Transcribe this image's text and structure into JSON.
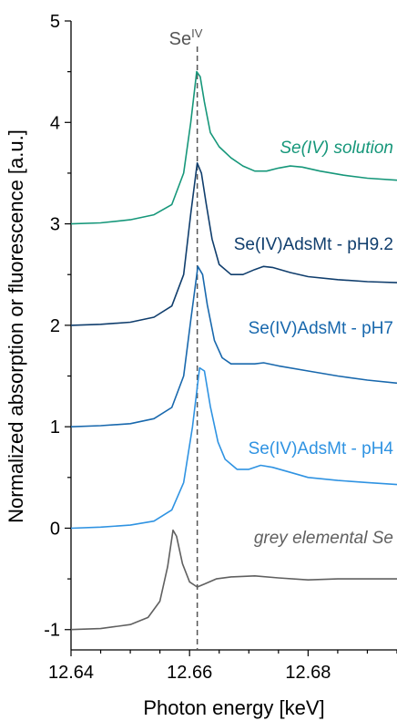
{
  "chart_data": {
    "type": "line",
    "title": "",
    "xlabel": "Photon energy [keV]",
    "ylabel": "Normalized absorption or fluorescence [a.u.]",
    "xlim": [
      12.64,
      12.695
    ],
    "ylim": [
      -1.2,
      5.0
    ],
    "x_ticks": [
      12.64,
      12.66,
      12.68
    ],
    "x_tick_labels": [
      "12.64",
      "12.66",
      "12.68"
    ],
    "y_ticks": [
      -1,
      0,
      1,
      2,
      3,
      4,
      5
    ],
    "y_tick_labels": [
      "-1",
      "0",
      "1",
      "2",
      "3",
      "4",
      "5"
    ],
    "grid": false,
    "legend": "inline labels",
    "reference_line": {
      "x": 12.6613,
      "label_base": "Se",
      "label_sup": "IV",
      "color": "#555555",
      "style": "dashed"
    },
    "series": [
      {
        "name": "Se(IV) solution",
        "label_style": "italic",
        "color": "#16977a",
        "points": [
          [
            12.64,
            3.0
          ],
          [
            12.645,
            3.01
          ],
          [
            12.65,
            3.04
          ],
          [
            12.654,
            3.09
          ],
          [
            12.657,
            3.19
          ],
          [
            12.659,
            3.5
          ],
          [
            12.6602,
            4.0
          ],
          [
            12.6612,
            4.5
          ],
          [
            12.6618,
            4.45
          ],
          [
            12.6625,
            4.2
          ],
          [
            12.6635,
            3.9
          ],
          [
            12.665,
            3.76
          ],
          [
            12.667,
            3.65
          ],
          [
            12.669,
            3.57
          ],
          [
            12.671,
            3.52
          ],
          [
            12.673,
            3.52
          ],
          [
            12.675,
            3.55
          ],
          [
            12.677,
            3.57
          ],
          [
            12.679,
            3.56
          ],
          [
            12.682,
            3.52
          ],
          [
            12.686,
            3.48
          ],
          [
            12.69,
            3.45
          ],
          [
            12.695,
            3.43
          ]
        ]
      },
      {
        "name": "Se(IV)AdsMt - pH9.2",
        "label_style": "normal",
        "color": "#103e6d",
        "points": [
          [
            12.64,
            2.0
          ],
          [
            12.645,
            2.01
          ],
          [
            12.65,
            2.03
          ],
          [
            12.654,
            2.08
          ],
          [
            12.657,
            2.19
          ],
          [
            12.659,
            2.5
          ],
          [
            12.6602,
            3.1
          ],
          [
            12.6613,
            3.6
          ],
          [
            12.662,
            3.5
          ],
          [
            12.6628,
            3.2
          ],
          [
            12.6638,
            2.85
          ],
          [
            12.665,
            2.6
          ],
          [
            12.667,
            2.5
          ],
          [
            12.669,
            2.5
          ],
          [
            12.671,
            2.55
          ],
          [
            12.6725,
            2.58
          ],
          [
            12.674,
            2.57
          ],
          [
            12.677,
            2.52
          ],
          [
            12.68,
            2.48
          ],
          [
            12.685,
            2.45
          ],
          [
            12.69,
            2.43
          ],
          [
            12.695,
            2.42
          ]
        ]
      },
      {
        "name": "Se(IV)AdsMt - pH7",
        "label_style": "normal",
        "color": "#1868ad",
        "points": [
          [
            12.64,
            1.0
          ],
          [
            12.645,
            1.01
          ],
          [
            12.65,
            1.03
          ],
          [
            12.654,
            1.08
          ],
          [
            12.657,
            1.19
          ],
          [
            12.659,
            1.5
          ],
          [
            12.6602,
            2.05
          ],
          [
            12.6614,
            2.58
          ],
          [
            12.6622,
            2.5
          ],
          [
            12.663,
            2.2
          ],
          [
            12.6642,
            1.85
          ],
          [
            12.6655,
            1.68
          ],
          [
            12.667,
            1.62
          ],
          [
            12.669,
            1.62
          ],
          [
            12.671,
            1.62
          ],
          [
            12.6725,
            1.63
          ],
          [
            12.675,
            1.6
          ],
          [
            12.68,
            1.55
          ],
          [
            12.685,
            1.5
          ],
          [
            12.69,
            1.46
          ],
          [
            12.695,
            1.43
          ]
        ]
      },
      {
        "name": "Se(IV)AdsMt - pH4",
        "label_style": "normal",
        "color": "#2f93e2",
        "points": [
          [
            12.64,
            0.0
          ],
          [
            12.645,
            0.01
          ],
          [
            12.65,
            0.03
          ],
          [
            12.654,
            0.07
          ],
          [
            12.657,
            0.18
          ],
          [
            12.659,
            0.45
          ],
          [
            12.6605,
            1.0
          ],
          [
            12.6617,
            1.58
          ],
          [
            12.6625,
            1.55
          ],
          [
            12.6635,
            1.2
          ],
          [
            12.6648,
            0.85
          ],
          [
            12.666,
            0.68
          ],
          [
            12.668,
            0.58
          ],
          [
            12.67,
            0.58
          ],
          [
            12.672,
            0.62
          ],
          [
            12.674,
            0.6
          ],
          [
            12.677,
            0.55
          ],
          [
            12.68,
            0.5
          ],
          [
            12.685,
            0.47
          ],
          [
            12.69,
            0.45
          ],
          [
            12.695,
            0.43
          ]
        ]
      },
      {
        "name": "grey elemental Se",
        "label_style": "italic",
        "color": "#606060",
        "points": [
          [
            12.64,
            -1.0
          ],
          [
            12.645,
            -0.99
          ],
          [
            12.65,
            -0.95
          ],
          [
            12.653,
            -0.88
          ],
          [
            12.655,
            -0.72
          ],
          [
            12.6563,
            -0.38
          ],
          [
            12.6572,
            -0.02
          ],
          [
            12.6578,
            -0.08
          ],
          [
            12.6588,
            -0.35
          ],
          [
            12.66,
            -0.53
          ],
          [
            12.6613,
            -0.58
          ],
          [
            12.6625,
            -0.55
          ],
          [
            12.6645,
            -0.5
          ],
          [
            12.667,
            -0.48
          ],
          [
            12.671,
            -0.47
          ],
          [
            12.675,
            -0.49
          ],
          [
            12.68,
            -0.51
          ],
          [
            12.685,
            -0.5
          ],
          [
            12.69,
            -0.5
          ],
          [
            12.695,
            -0.5
          ]
        ]
      }
    ]
  }
}
